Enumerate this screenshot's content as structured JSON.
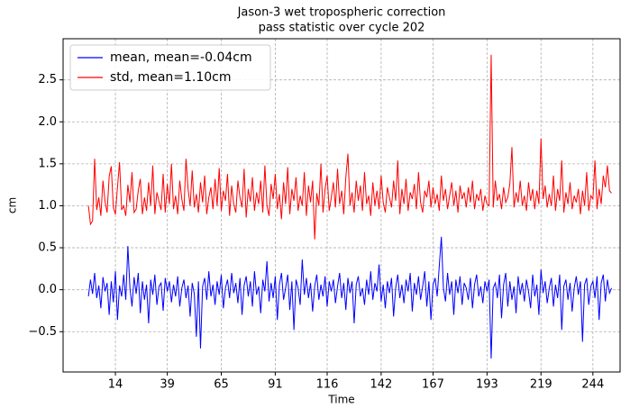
{
  "chart_data": {
    "type": "line",
    "title": "Jason-3 wet tropospheric correction",
    "subtitle": "pass statistic over cycle 202",
    "xlabel": "Time",
    "ylabel": "cm",
    "x": [
      1,
      2,
      3,
      4,
      5,
      6,
      7,
      8,
      9,
      10,
      11,
      12,
      13,
      14,
      15,
      16,
      17,
      18,
      19,
      20,
      21,
      22,
      23,
      24,
      25,
      26,
      27,
      28,
      29,
      30,
      31,
      32,
      33,
      34,
      35,
      36,
      37,
      38,
      39,
      40,
      41,
      42,
      43,
      44,
      45,
      46,
      47,
      48,
      49,
      50,
      51,
      52,
      53,
      54,
      55,
      56,
      57,
      58,
      59,
      60,
      61,
      62,
      63,
      64,
      65,
      66,
      67,
      68,
      69,
      70,
      71,
      72,
      73,
      74,
      75,
      76,
      77,
      78,
      79,
      80,
      81,
      82,
      83,
      84,
      85,
      86,
      87,
      88,
      89,
      90,
      91,
      92,
      93,
      94,
      95,
      96,
      97,
      98,
      99,
      100,
      101,
      102,
      103,
      104,
      105,
      106,
      107,
      108,
      109,
      110,
      111,
      112,
      113,
      114,
      115,
      116,
      117,
      118,
      119,
      120,
      121,
      122,
      123,
      124,
      125,
      126,
      127,
      128,
      129,
      130,
      131,
      132,
      133,
      134,
      135,
      136,
      137,
      138,
      139,
      140,
      141,
      142,
      143,
      144,
      145,
      146,
      147,
      148,
      149,
      150,
      151,
      152,
      153,
      154,
      155,
      156,
      157,
      158,
      159,
      160,
      161,
      162,
      163,
      164,
      165,
      166,
      167,
      168,
      169,
      170,
      171,
      172,
      173,
      174,
      175,
      176,
      177,
      178,
      179,
      180,
      181,
      182,
      183,
      184,
      185,
      186,
      187,
      188,
      189,
      190,
      191,
      192,
      193,
      194,
      195,
      196,
      197,
      198,
      199,
      200,
      201,
      202,
      203,
      204,
      205,
      206,
      207,
      208,
      209,
      210,
      211,
      212,
      213,
      214,
      215,
      216,
      217,
      218,
      219,
      220,
      221,
      222,
      223,
      224,
      225,
      226,
      227,
      228,
      229,
      230,
      231,
      232,
      233,
      234,
      235,
      236,
      237,
      238,
      239,
      240,
      241,
      242,
      243,
      244,
      245,
      246,
      247,
      248,
      249,
      250,
      251,
      252,
      253
    ],
    "series": [
      {
        "name": "mean, mean=-0.04cm",
        "color": "#0000ff",
        "values": [
          -0.08,
          0.12,
          -0.05,
          0.2,
          -0.1,
          0.05,
          -0.22,
          0.15,
          -0.02,
          0.08,
          -0.3,
          0.1,
          -0.15,
          0.22,
          -0.36,
          0.05,
          -0.08,
          0.18,
          -0.12,
          0.52,
          0.02,
          -0.2,
          0.15,
          -0.05,
          0.2,
          -0.28,
          0.1,
          -0.12,
          0.06,
          -0.4,
          0.12,
          -0.06,
          0.18,
          -0.18,
          0.04,
          0.08,
          -0.25,
          0.14,
          -0.02,
          0.1,
          -0.15,
          0.06,
          -0.08,
          0.16,
          -0.2,
          0.02,
          0.12,
          -0.1,
          0.05,
          -0.32,
          0.08,
          -0.05,
          -0.56,
          0.1,
          -0.7,
          0.04,
          0.14,
          -0.12,
          0.22,
          -0.08,
          0.06,
          -0.18,
          0.1,
          -0.06,
          0.18,
          -0.22,
          0.02,
          0.12,
          -0.1,
          0.2,
          -0.04,
          0.08,
          -0.16,
          0.14,
          -0.3,
          0.05,
          0.16,
          -0.08,
          0.1,
          -0.2,
          0.22,
          -0.06,
          0.04,
          -0.28,
          0.12,
          -0.02,
          0.34,
          -0.14,
          0.08,
          -0.1,
          0.16,
          -0.36,
          0.06,
          0.2,
          -0.12,
          0.02,
          0.18,
          -0.24,
          0.1,
          -0.48,
          0.12,
          0.02,
          -0.18,
          0.36,
          -0.06,
          0.14,
          -0.1,
          0.08,
          -0.26,
          0.04,
          0.18,
          -0.12,
          0.06,
          -0.08,
          0.16,
          -0.2,
          0.1,
          -0.02,
          0.12,
          -0.16,
          0.04,
          0.2,
          -0.1,
          0.08,
          -0.24,
          0.14,
          -0.04,
          0.1,
          -0.4,
          0.06,
          0.16,
          -0.08,
          0.02,
          -0.18,
          0.12,
          -0.06,
          0.22,
          -0.12,
          0.08,
          -0.02,
          0.3,
          -0.14,
          0.06,
          -0.22,
          0.1,
          -0.04,
          0.14,
          -0.32,
          0.02,
          0.18,
          -0.1,
          0.06,
          -0.16,
          0.12,
          -0.02,
          0.2,
          -0.26,
          0.08,
          -0.06,
          0.16,
          -0.12,
          0.04,
          0.22,
          -0.2,
          0.1,
          -0.36,
          0.06,
          0.14,
          -0.08,
          0.28,
          0.63,
          0.02,
          -0.14,
          0.2,
          -0.06,
          0.1,
          -0.3,
          0.12,
          -0.04,
          0.16,
          -0.18,
          0.08,
          0.02,
          -0.12,
          0.14,
          -0.22,
          0.06,
          0.18,
          -0.08,
          0.04,
          -0.16,
          0.1,
          -0.02,
          0.12,
          -0.82,
          0.02,
          0.08,
          -0.1,
          0.18,
          -0.34,
          0.06,
          0.2,
          -0.2,
          0.1,
          -0.12,
          0.04,
          -0.28,
          0.16,
          -0.06,
          0.08,
          -0.14,
          0.12,
          -0.02,
          -0.22,
          0.18,
          -0.08,
          0.06,
          -0.3,
          0.24,
          -0.04,
          0.1,
          -0.16,
          0.02,
          0.14,
          -0.2,
          0.06,
          -0.1,
          0.18,
          -0.48,
          0.04,
          0.12,
          -0.12,
          0.08,
          -0.26,
          0.02,
          0.16,
          -0.06,
          0.1,
          -0.62,
          0.06,
          0.14,
          -0.18,
          0.04,
          0.1,
          -0.1,
          0.16,
          -0.36,
          0.08,
          0.18,
          -0.14,
          0.12,
          -0.04,
          0.02
        ]
      },
      {
        "name": "std, mean=1.10cm",
        "color": "#ff0000",
        "values": [
          1.0,
          0.78,
          0.82,
          1.56,
          0.95,
          1.1,
          0.88,
          1.3,
          1.05,
          0.92,
          1.35,
          1.47,
          0.98,
          0.9,
          1.22,
          1.52,
          0.95,
          1.0,
          0.88,
          1.25,
          1.04,
          1.4,
          0.92,
          0.96,
          1.18,
          1.32,
          0.9,
          1.1,
          0.94,
          1.28,
          1.0,
          1.48,
          0.9,
          1.16,
          1.05,
          0.95,
          1.38,
          0.92,
          1.26,
          1.02,
          1.5,
          0.96,
          1.12,
          0.9,
          1.3,
          1.08,
          0.94,
          1.56,
          1.2,
          1.0,
          1.42,
          0.98,
          1.14,
          0.92,
          1.28,
          1.04,
          1.36,
          0.9,
          1.1,
          1.22,
          0.96,
          1.32,
          1.0,
          1.45,
          0.94,
          1.18,
          1.06,
          1.38,
          0.88,
          1.24,
          1.02,
          0.92,
          1.3,
          1.1,
          0.98,
          1.44,
          0.86,
          1.2,
          1.05,
          1.34,
          0.94,
          1.16,
          1.02,
          1.3,
          0.92,
          1.48,
          1.0,
          0.88,
          1.26,
          1.08,
          1.38,
          0.96,
          1.14,
          0.84,
          1.28,
          1.02,
          1.46,
          0.9,
          1.2,
          1.06,
          1.34,
          0.94,
          1.12,
          1.0,
          1.4,
          0.88,
          1.24,
          1.04,
          1.3,
          0.6,
          1.15,
          1.0,
          1.5,
          0.92,
          1.2,
          1.36,
          0.94,
          1.1,
          1.28,
          0.98,
          1.44,
          1.02,
          1.18,
          0.9,
          1.34,
          1.62,
          1.0,
          1.16,
          0.92,
          1.3,
          1.06,
          1.24,
          0.94,
          1.4,
          1.02,
          1.12,
          0.88,
          1.28,
          1.0,
          1.18,
          0.96,
          1.36,
          1.04,
          0.92,
          1.22,
          1.1,
          0.98,
          1.3,
          1.06,
          1.54,
          0.9,
          1.2,
          1.02,
          1.32,
          0.94,
          1.16,
          1.08,
          1.26,
          0.96,
          1.4,
          1.04,
          0.92,
          1.18,
          1.1,
          1.3,
          0.98,
          1.22,
          1.02,
          1.14,
          0.94,
          1.36,
          1.06,
          1.2,
          0.96,
          1.12,
          1.28,
          1.0,
          1.18,
          0.92,
          1.24,
          1.08,
          1.16,
          0.98,
          1.22,
          1.04,
          1.3,
          0.96,
          1.14,
          1.06,
          1.2,
          0.94,
          1.12,
          1.02,
          1.0,
          2.8,
          0.98,
          1.3,
          1.06,
          1.14,
          0.96,
          1.22,
          1.04,
          1.1,
          1.26,
          1.7,
          0.98,
          1.16,
          1.04,
          1.3,
          1.0,
          1.12,
          0.94,
          1.28,
          1.06,
          1.2,
          0.96,
          1.18,
          1.02,
          1.8,
          1.08,
          1.24,
          0.98,
          1.14,
          1.0,
          1.36,
          0.94,
          1.2,
          1.06,
          1.54,
          0.92,
          1.16,
          1.02,
          1.28,
          0.96,
          1.12,
          1.04,
          1.2,
          0.9,
          1.18,
          1.0,
          1.4,
          0.94,
          1.12,
          1.08,
          1.54,
          0.96,
          1.2,
          1.02,
          1.36,
          1.22,
          1.48,
          1.18,
          1.15
        ]
      }
    ],
    "xlim": [
      -11.2,
      257.1
    ],
    "ylim": [
      -0.98,
      2.99
    ],
    "xticks": [
      14,
      39,
      65,
      91,
      116,
      142,
      167,
      193,
      219,
      244
    ],
    "yticks": [
      {
        "value": -0.5,
        "label": "−0.5"
      },
      {
        "value": 0,
        "label": "0.0"
      },
      {
        "value": 0.5,
        "label": "0.5"
      },
      {
        "value": 1,
        "label": "1.0"
      },
      {
        "value": 1.5,
        "label": "1.5"
      },
      {
        "value": 2,
        "label": "2.0"
      },
      {
        "value": 2.5,
        "label": "2.5"
      }
    ],
    "grid": true,
    "legend": "upper left"
  }
}
